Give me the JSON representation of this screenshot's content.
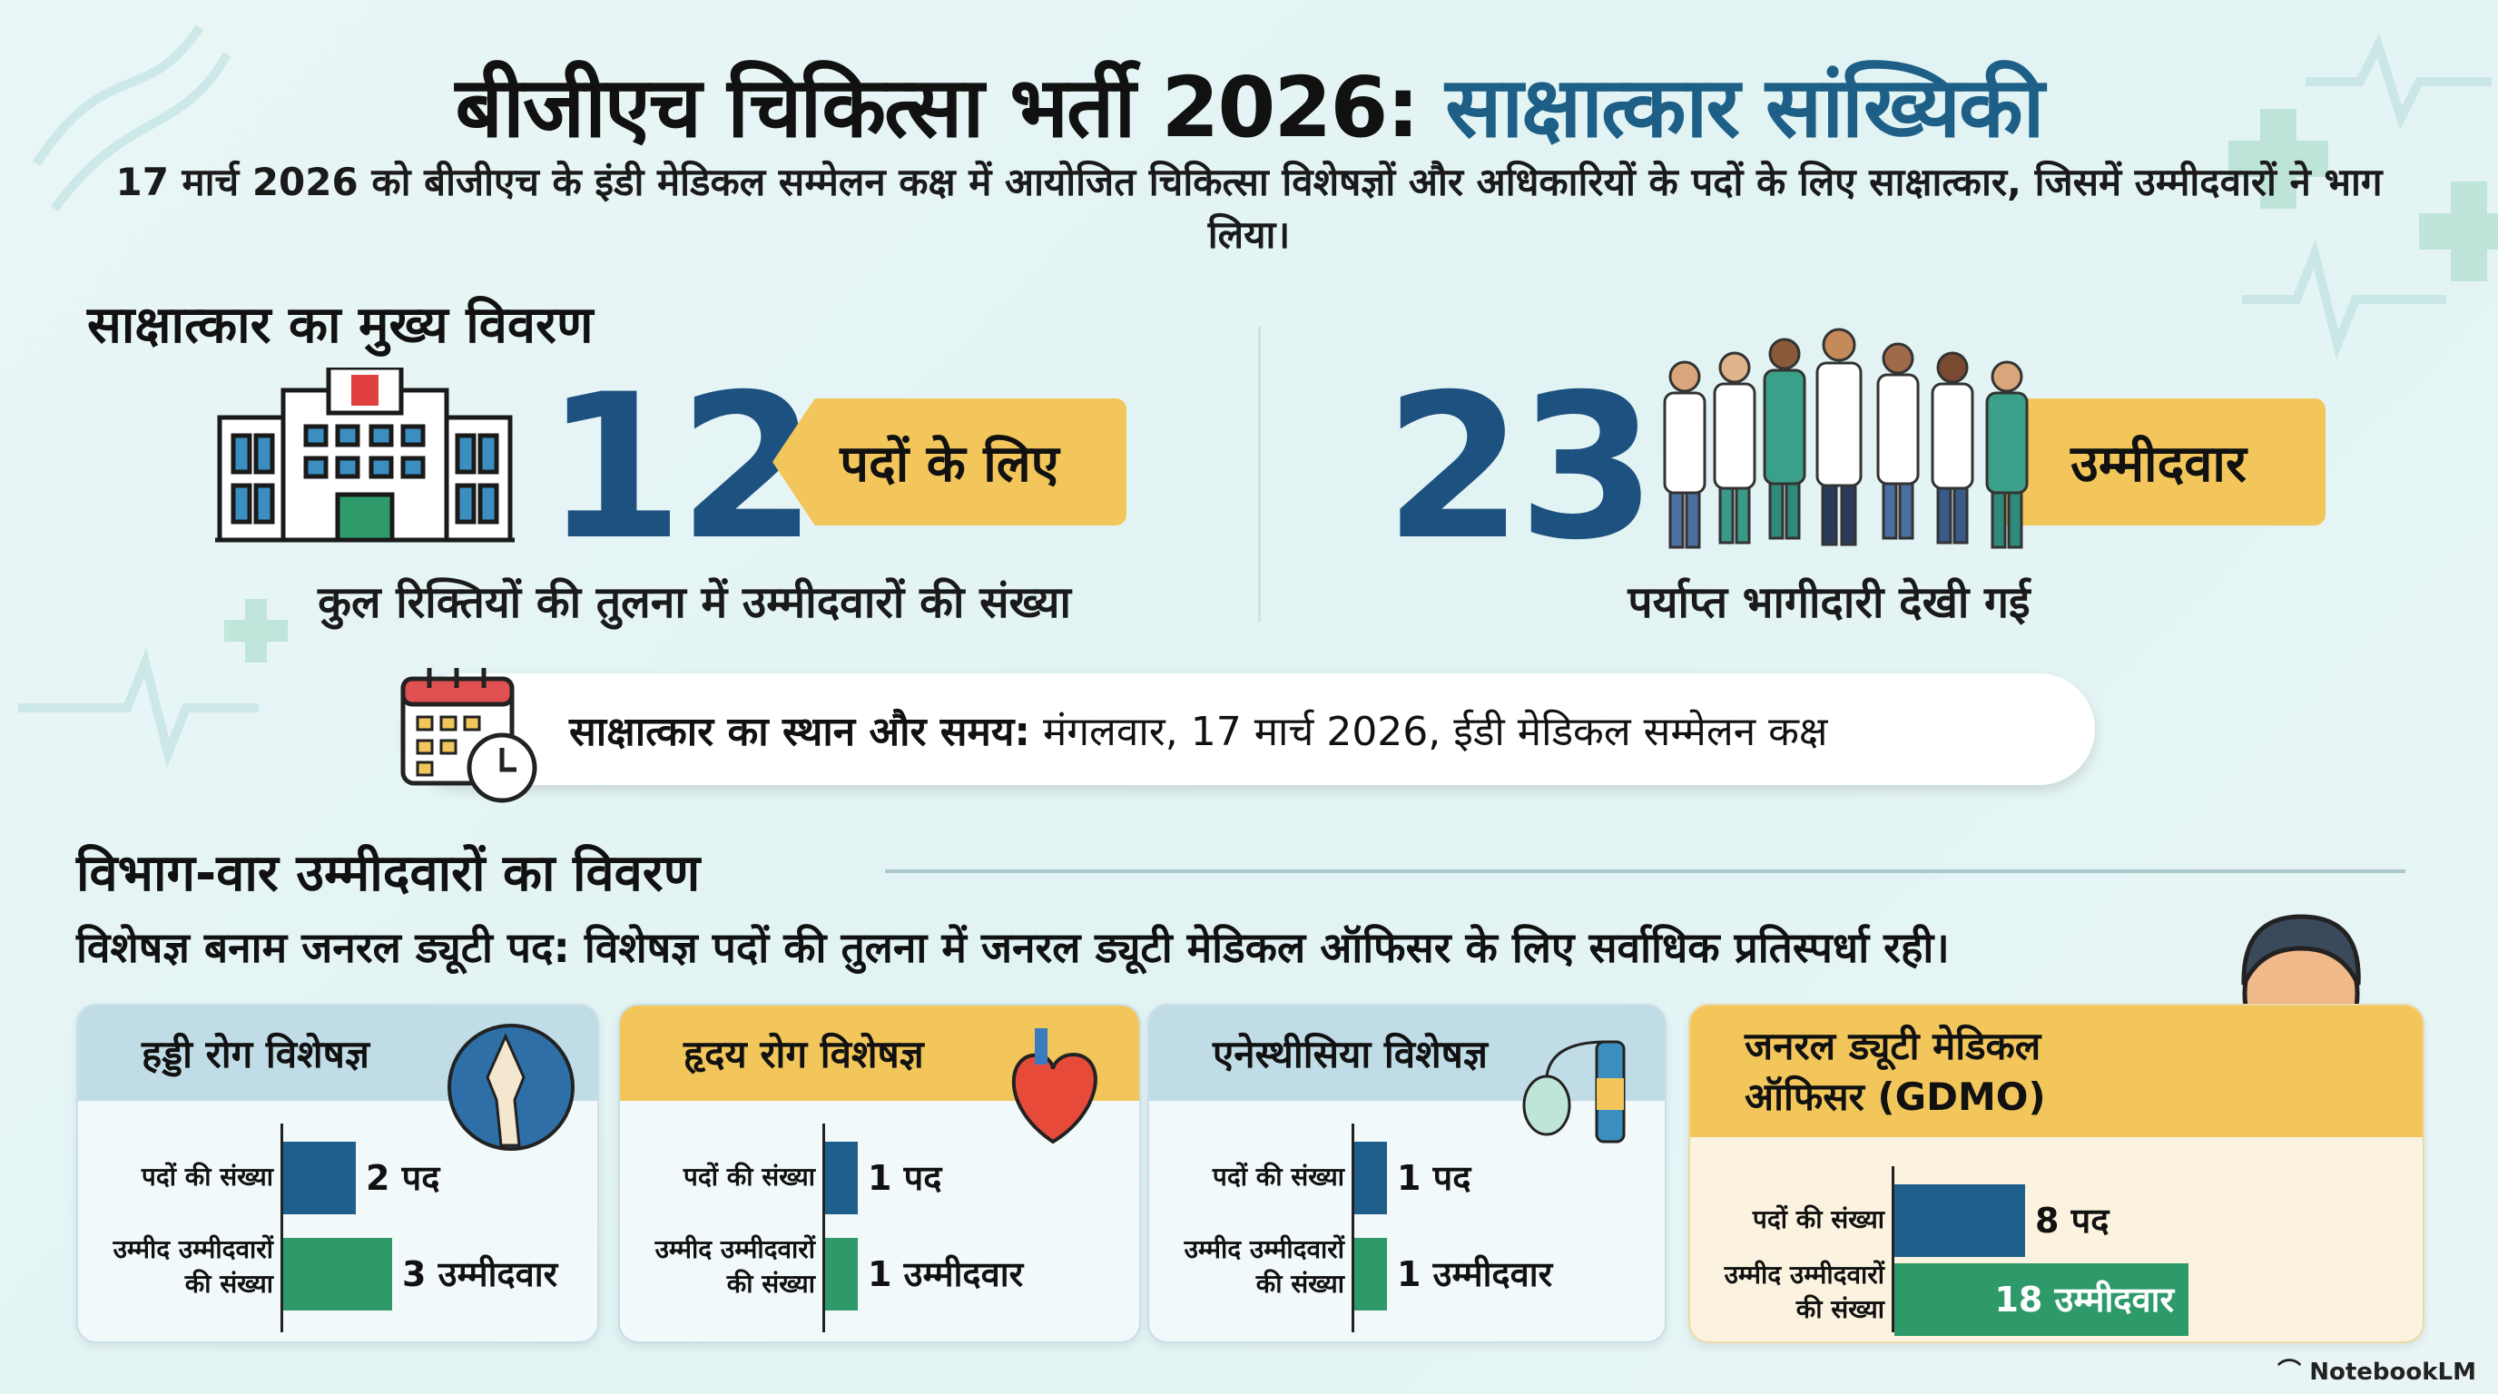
{
  "title": {
    "main": "बीजीएच चिकित्सा भर्ती 2026:",
    "accent": "साक्षात्कार सांख्यिकी"
  },
  "subtitle": "17 मार्च 2026 को बीजीएच के इंडी मेडिकल सम्मेलन कक्ष में आयोजित चिकित्सा विशेषज्ञों और अधिकारियों के पदों के लिए साक्षात्कार, जिसमें उम्मीदवारों ने भाग लिया।",
  "overview": {
    "heading": "साक्षात्कार का मुख्य विवरण",
    "posts": {
      "number": "12",
      "tag": "पदों के लिए",
      "caption": "कुल रिक्तियों की तुलना में उम्मीदवारों की संख्या"
    },
    "candidates": {
      "number": "23",
      "tag": "उम्मीदवार",
      "caption": "पर्याप्त भागीदारी देखी गई"
    },
    "venue": {
      "label": "साक्षात्कार का स्थान और समय:",
      "value": "मंगलवार, 17 मार्च 2026, ईडी मेडिकल सम्मेलन कक्ष"
    }
  },
  "departments": {
    "heading": "विभाग-वार उम्मीदवारों का विवरण",
    "subtitle": "विशेषज्ञ बनाम जनरल ड्यूटी पद: विशेषज्ञ पदों की तुलना में जनरल ड्यूटी मेडिकल ऑफिसर के लिए सर्वाधिक प्रतिस्पर्धा रही।",
    "posts_label": "पदों की संख्या",
    "candidates_label_1": "उम्मीद उम्मीदवारों",
    "candidates_label_2": "की संख्या",
    "cards": [
      {
        "title": "हड्डी रोग विशेषज्ञ",
        "posts": 2,
        "posts_text": "2 पद",
        "candidates": 3,
        "candidates_text": "3 उम्मीदवार"
      },
      {
        "title": "हृदय रोग विशेषज्ञ",
        "posts": 1,
        "posts_text": "1 पद",
        "candidates": 1,
        "candidates_text": "1 उम्मीदवार"
      },
      {
        "title": "एनेस्थीसिया विशेषज्ञ",
        "posts": 1,
        "posts_text": "1 पद",
        "candidates": 1,
        "candidates_text": "1 उम्मीदवार"
      },
      {
        "title_1": "जनरल ड्यूटी मेडिकल",
        "title_2": "ऑफिसर (GDMO)",
        "posts": 8,
        "posts_text": "8 पद",
        "candidates": 18,
        "candidates_text": "18 उम्मीदवार"
      }
    ]
  },
  "watermark": "NotebookLM",
  "colors": {
    "accent": "#1d5f86",
    "tag": "#f2c65b",
    "posts_bar": "#1f5f8b",
    "candidates_bar": "#2e9a6a"
  }
}
